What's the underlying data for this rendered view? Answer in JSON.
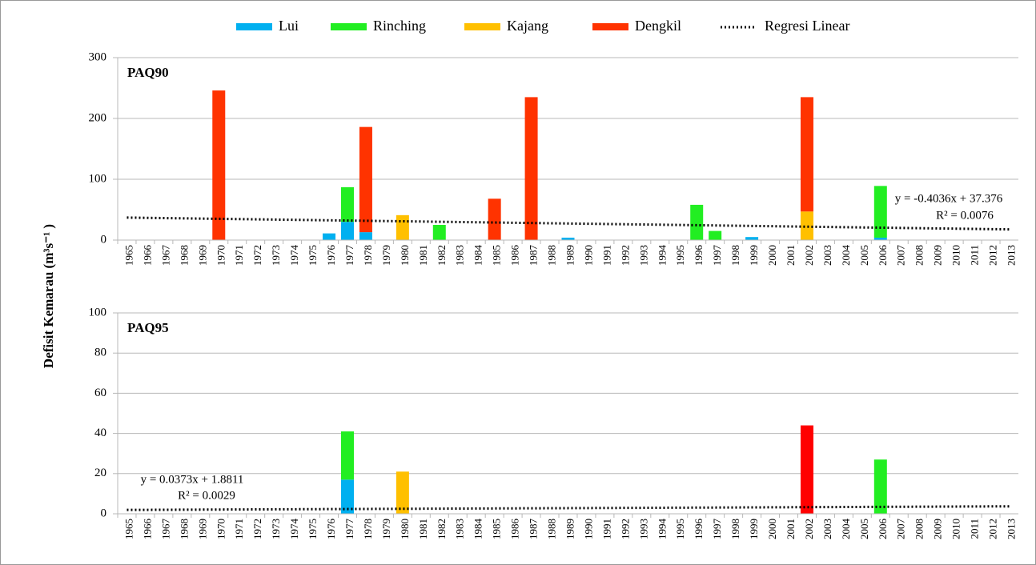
{
  "ylabel": "Defisit Kemarau (m³s⁻¹ )",
  "chart_data": [
    {
      "type": "bar",
      "stacked": true,
      "title": "PAQ90",
      "categories": [
        "1965",
        "1966",
        "1967",
        "1968",
        "1969",
        "1970",
        "1971",
        "1972",
        "1973",
        "1974",
        "1975",
        "1976",
        "1977",
        "1978",
        "1979",
        "1980",
        "1981",
        "1982",
        "1983",
        "1984",
        "1985",
        "1986",
        "1987",
        "1988",
        "1989",
        "1990",
        "1991",
        "1992",
        "1993",
        "1994",
        "1995",
        "1996",
        "1997",
        "1998",
        "1999",
        "2000",
        "2001",
        "2002",
        "2003",
        "2004",
        "2005",
        "2006",
        "2007",
        "2008",
        "2009",
        "2010",
        "2011",
        "2012",
        "2013"
      ],
      "ylim": [
        0,
        300
      ],
      "yticks": [
        0,
        100,
        200,
        300
      ],
      "grid": true,
      "series": [
        {
          "name": "Lui",
          "color": "#00b0f0",
          "values": [
            null,
            null,
            null,
            null,
            null,
            null,
            null,
            null,
            null,
            null,
            null,
            11,
            30,
            13,
            null,
            null,
            null,
            null,
            null,
            null,
            null,
            null,
            null,
            null,
            4,
            null,
            null,
            null,
            null,
            null,
            null,
            null,
            null,
            null,
            5,
            null,
            null,
            null,
            null,
            null,
            null,
            4,
            null,
            null,
            null,
            null,
            null,
            null,
            null
          ]
        },
        {
          "name": "Rinching",
          "color": "#22ee22",
          "values": [
            null,
            null,
            null,
            null,
            null,
            null,
            null,
            null,
            null,
            null,
            null,
            null,
            57,
            null,
            null,
            null,
            null,
            25,
            null,
            null,
            null,
            null,
            null,
            null,
            null,
            null,
            null,
            null,
            null,
            null,
            null,
            58,
            15,
            null,
            null,
            null,
            null,
            null,
            null,
            null,
            null,
            85,
            null,
            null,
            null,
            null,
            null,
            null,
            null
          ]
        },
        {
          "name": "Kajang",
          "color": "#ffc000",
          "values": [
            null,
            null,
            null,
            null,
            null,
            null,
            null,
            null,
            null,
            null,
            null,
            null,
            null,
            null,
            null,
            41,
            null,
            null,
            null,
            null,
            null,
            null,
            null,
            null,
            null,
            null,
            null,
            null,
            null,
            null,
            null,
            null,
            null,
            null,
            null,
            null,
            null,
            47,
            null,
            null,
            null,
            null,
            null,
            null,
            null,
            null,
            null,
            null,
            null
          ]
        },
        {
          "name": "Dengkil",
          "color": "#ff3300",
          "values": [
            null,
            null,
            null,
            null,
            null,
            246,
            null,
            null,
            null,
            null,
            null,
            null,
            null,
            173,
            null,
            null,
            null,
            null,
            null,
            null,
            68,
            null,
            235,
            null,
            null,
            null,
            null,
            null,
            null,
            null,
            null,
            null,
            null,
            null,
            null,
            null,
            null,
            188,
            null,
            null,
            null,
            null,
            null,
            null,
            null,
            null,
            null,
            null,
            null
          ]
        }
      ],
      "trend": {
        "name": "Regresi Linear",
        "slope": -0.4036,
        "intercept": 37.376,
        "equation": "y = -0.4036x + 37.376",
        "r2": "R² = 0.0076"
      }
    },
    {
      "type": "bar",
      "stacked": true,
      "title": "PAQ95",
      "categories": [
        "1965",
        "1966",
        "1967",
        "1968",
        "1969",
        "1970",
        "1971",
        "1972",
        "1973",
        "1974",
        "1975",
        "1976",
        "1977",
        "1978",
        "1979",
        "1980",
        "1981",
        "1982",
        "1983",
        "1984",
        "1985",
        "1986",
        "1987",
        "1988",
        "1989",
        "1990",
        "1991",
        "1992",
        "1993",
        "1994",
        "1995",
        "1996",
        "1997",
        "1998",
        "1999",
        "2000",
        "2001",
        "2002",
        "2003",
        "2004",
        "2005",
        "2006",
        "2007",
        "2008",
        "2009",
        "2010",
        "2011",
        "2012",
        "2013"
      ],
      "ylim": [
        0,
        100
      ],
      "yticks": [
        0,
        20,
        40,
        60,
        80,
        100
      ],
      "grid": true,
      "series": [
        {
          "name": "Lui",
          "color": "#00b0f0",
          "values": [
            null,
            null,
            null,
            null,
            null,
            null,
            null,
            null,
            null,
            null,
            null,
            null,
            17,
            null,
            null,
            null,
            null,
            null,
            null,
            null,
            null,
            null,
            null,
            null,
            null,
            null,
            null,
            null,
            null,
            null,
            null,
            null,
            null,
            null,
            null,
            null,
            null,
            null,
            null,
            null,
            null,
            null,
            null,
            null,
            null,
            null,
            null,
            null,
            null
          ]
        },
        {
          "name": "Rinching",
          "color": "#22ee22",
          "values": [
            null,
            null,
            null,
            null,
            null,
            null,
            null,
            null,
            null,
            null,
            null,
            null,
            24,
            null,
            null,
            null,
            null,
            null,
            null,
            null,
            null,
            null,
            null,
            null,
            null,
            null,
            null,
            null,
            null,
            null,
            null,
            null,
            null,
            null,
            null,
            null,
            null,
            null,
            null,
            null,
            null,
            27,
            null,
            null,
            null,
            null,
            null,
            null,
            null
          ]
        },
        {
          "name": "Kajang",
          "color": "#ffc000",
          "values": [
            null,
            null,
            null,
            null,
            null,
            null,
            null,
            null,
            null,
            null,
            null,
            null,
            null,
            null,
            null,
            21,
            null,
            null,
            null,
            null,
            null,
            null,
            null,
            null,
            null,
            null,
            null,
            null,
            null,
            null,
            null,
            null,
            null,
            null,
            null,
            null,
            null,
            null,
            null,
            null,
            null,
            null,
            null,
            null,
            null,
            null,
            null,
            null,
            null
          ]
        },
        {
          "name": "Dengkil",
          "color": "#ff0000",
          "values": [
            null,
            null,
            null,
            null,
            null,
            null,
            null,
            null,
            null,
            null,
            null,
            null,
            null,
            null,
            null,
            null,
            null,
            null,
            null,
            null,
            null,
            null,
            null,
            null,
            null,
            null,
            null,
            null,
            null,
            null,
            null,
            null,
            null,
            null,
            null,
            null,
            null,
            44,
            null,
            null,
            null,
            null,
            null,
            null,
            null,
            null,
            null,
            null,
            null
          ]
        }
      ],
      "trend": {
        "slope": 0.0373,
        "intercept": 1.8811,
        "equation": "y = 0.0373x + 1.8811",
        "r2": "R² = 0.0029"
      }
    }
  ]
}
